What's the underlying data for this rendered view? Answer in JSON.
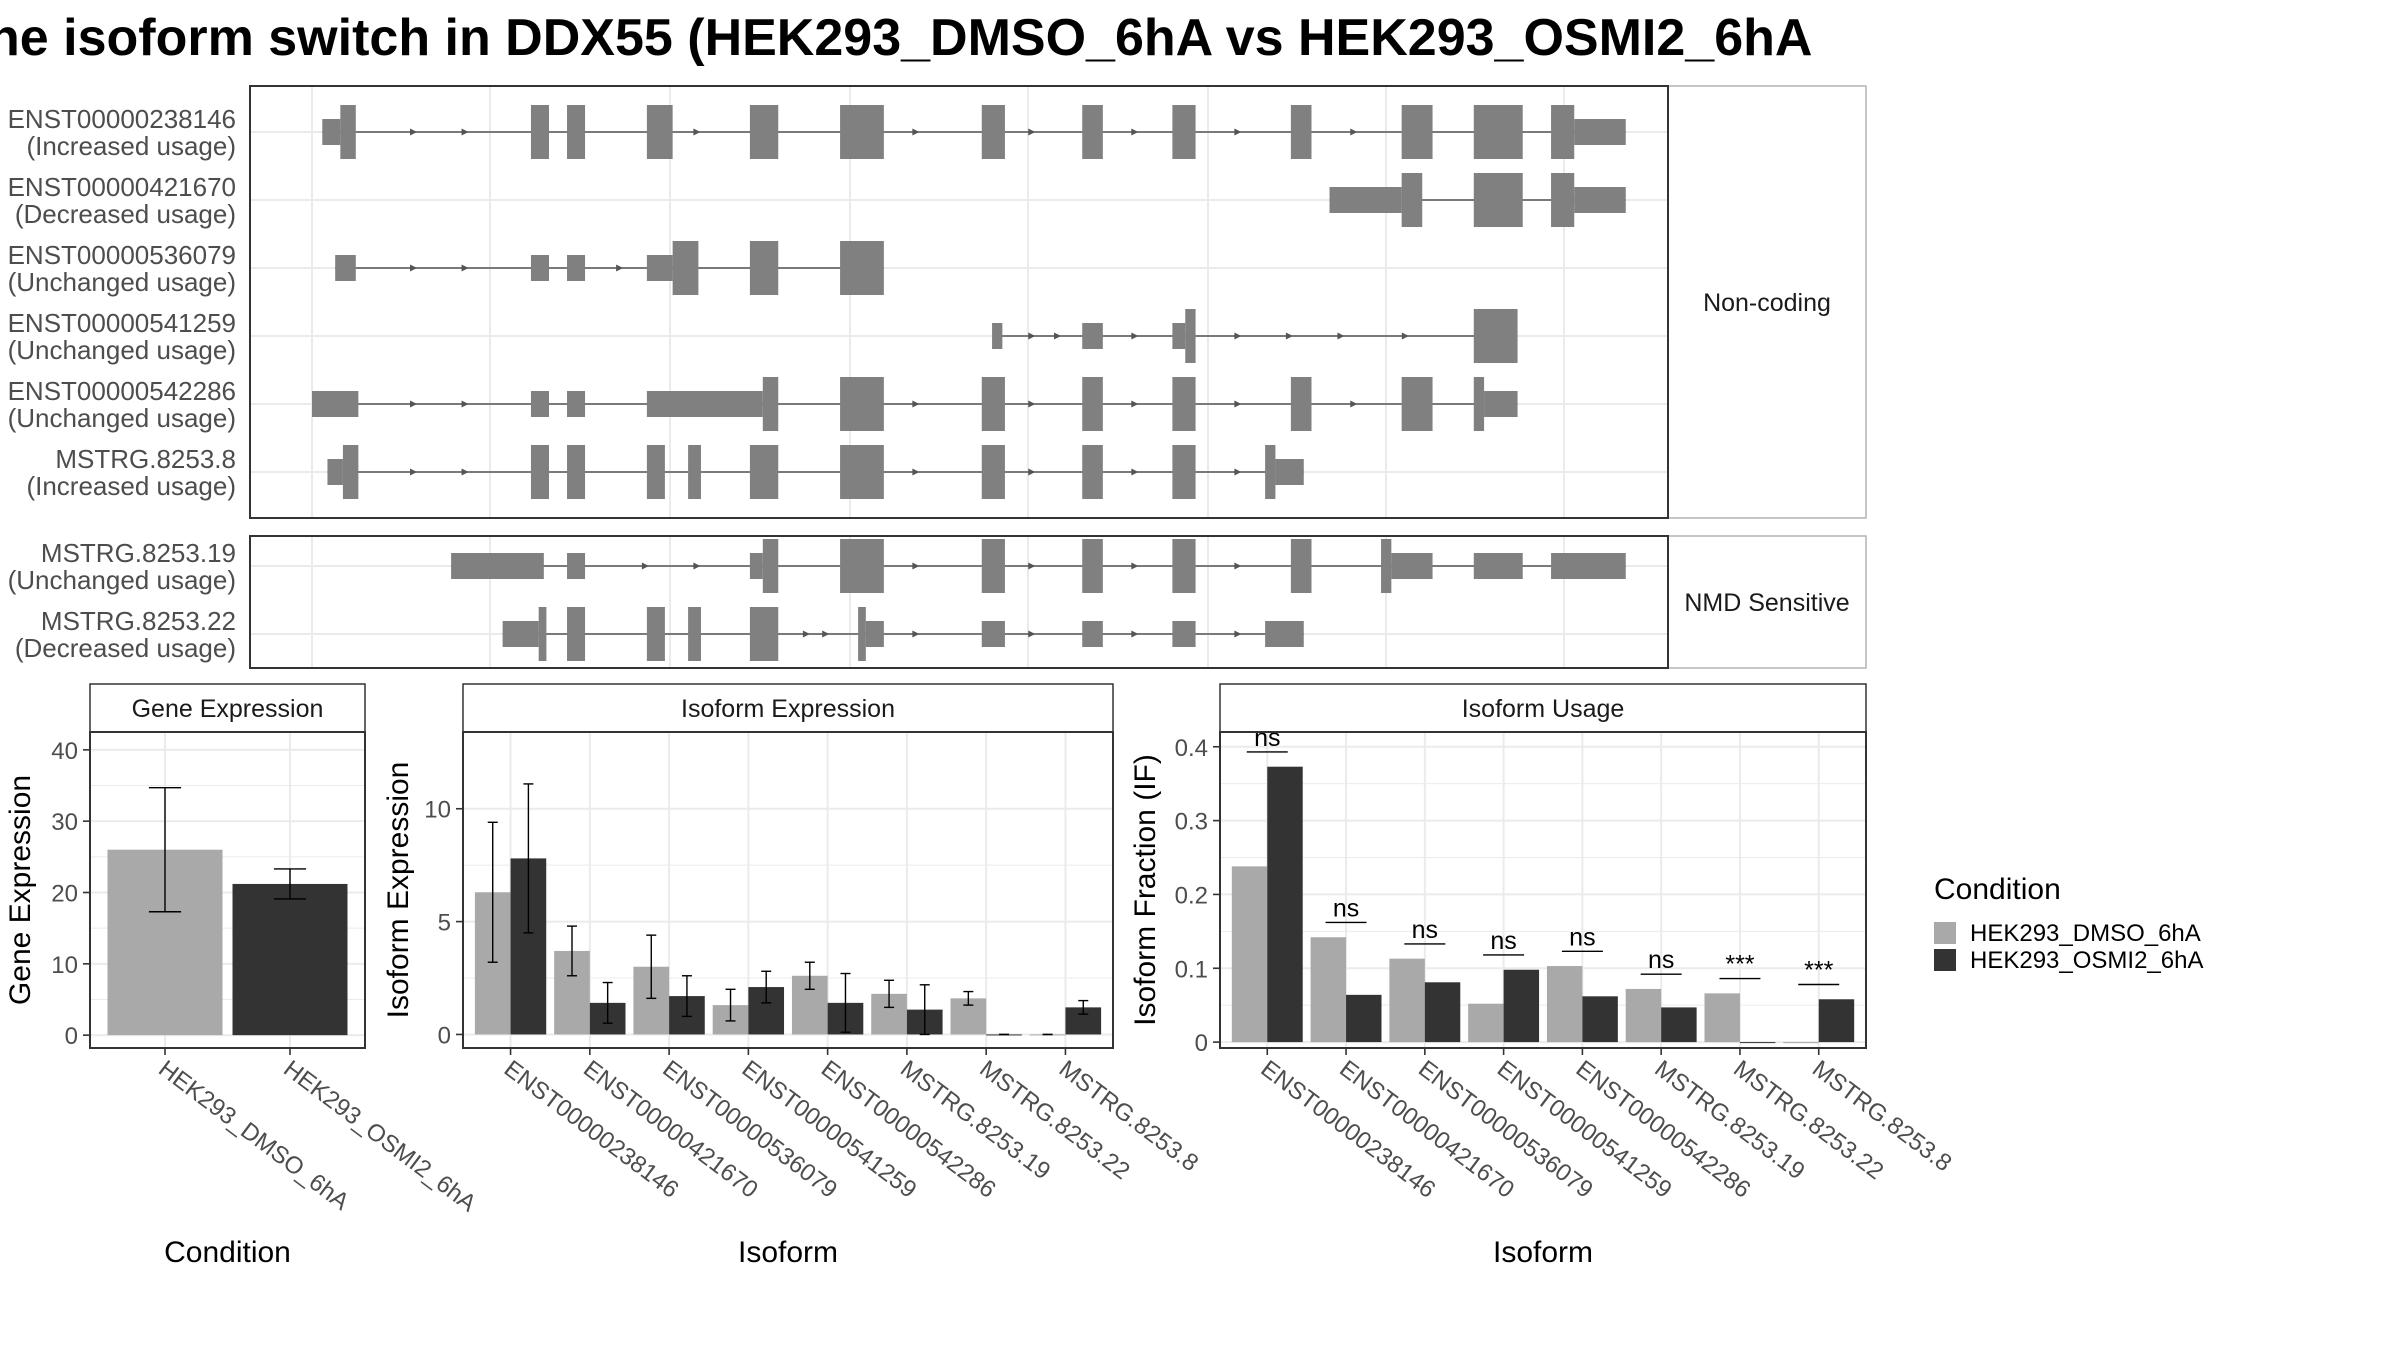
{
  "title": "he isoform switch in DDX55 (HEK293_DMSO_6hA vs HEK293_OSMI2_6hA",
  "colors": {
    "exon": "#808080",
    "intron": "#555555",
    "condition1": "#a9a9a9",
    "condition2": "#333333",
    "grid": "#ebebeb",
    "strip": "#ffffff",
    "panel_border": "#333333",
    "strip_border": "#b3b3b3"
  },
  "legend": {
    "title": "Condition",
    "items": [
      "HEK293_DMSO_6hA",
      "HEK293_OSMI2_6hA"
    ]
  },
  "chart_data": [
    {
      "type": "gene-structure",
      "x_range": [
        0,
        1000
      ],
      "groups": [
        {
          "label": "Non-coding",
          "isoforms": [
            {
              "name": "ENST00000238146",
              "usage": "(Increased usage)",
              "exons": [
                [
                  8,
                  22,
                  "n"
                ],
                [
                  22,
                  34,
                  "c"
                ],
                [
                  170,
                  184,
                  "c"
                ],
                [
                  198,
                  212,
                  "c"
                ],
                [
                  260,
                  280,
                  "c"
                ],
                [
                  340,
                  362,
                  "c"
                ],
                [
                  410,
                  444,
                  "c"
                ],
                [
                  520,
                  538,
                  "c"
                ],
                [
                  598,
                  614,
                  "c"
                ],
                [
                  668,
                  686,
                  "c"
                ],
                [
                  760,
                  776,
                  "c"
                ],
                [
                  846,
                  870,
                  "c"
                ],
                [
                  902,
                  940,
                  "c"
                ],
                [
                  962,
                  980,
                  "c"
                ],
                [
                  980,
                  1020,
                  "n"
                ]
              ],
              "arrows": [
                80,
                120,
                300,
                470,
                560,
                640,
                720,
                810
              ]
            },
            {
              "name": "ENST00000421670",
              "usage": "(Decreased usage)",
              "exons": [
                [
                  790,
                  846,
                  "n"
                ],
                [
                  846,
                  862,
                  "c"
                ],
                [
                  902,
                  940,
                  "c"
                ],
                [
                  962,
                  980,
                  "c"
                ],
                [
                  980,
                  1020,
                  "n"
                ]
              ],
              "arrows": []
            },
            {
              "name": "ENST00000536079",
              "usage": "(Unchanged usage)",
              "exons": [
                [
                  18,
                  34,
                  "n"
                ],
                [
                  170,
                  184,
                  "n"
                ],
                [
                  198,
                  212,
                  "n"
                ],
                [
                  260,
                  280,
                  "n"
                ],
                [
                  280,
                  300,
                  "c"
                ],
                [
                  340,
                  362,
                  "c"
                ],
                [
                  410,
                  444,
                  "c"
                ]
              ],
              "arrows": [
                80,
                120,
                240
              ]
            },
            {
              "name": "ENST00000541259",
              "usage": "(Unchanged usage)",
              "exons": [
                [
                  528,
                  536,
                  "n"
                ],
                [
                  598,
                  614,
                  "n"
                ],
                [
                  668,
                  678,
                  "n"
                ],
                [
                  678,
                  686,
                  "c"
                ],
                [
                  902,
                  936,
                  "c"
                ]
              ],
              "arrows": [
                560,
                580,
                640,
                720,
                760,
                800,
                850
              ]
            },
            {
              "name": "ENST00000542286",
              "usage": "(Unchanged usage)",
              "exons": [
                [
                  0,
                  36,
                  "n"
                ],
                [
                  170,
                  184,
                  "n"
                ],
                [
                  198,
                  212,
                  "n"
                ],
                [
                  260,
                  350,
                  "n"
                ],
                [
                  350,
                  362,
                  "c"
                ],
                [
                  410,
                  444,
                  "c"
                ],
                [
                  520,
                  538,
                  "c"
                ],
                [
                  598,
                  614,
                  "c"
                ],
                [
                  668,
                  686,
                  "c"
                ],
                [
                  760,
                  776,
                  "c"
                ],
                [
                  846,
                  870,
                  "c"
                ],
                [
                  902,
                  910,
                  "c"
                ],
                [
                  910,
                  936,
                  "n"
                ]
              ],
              "arrows": [
                80,
                120,
                300,
                470,
                560,
                640,
                720,
                810
              ]
            },
            {
              "name": "MSTRG.8253.8",
              "usage": "(Increased usage)",
              "exons": [
                [
                  12,
                  24,
                  "n"
                ],
                [
                  24,
                  36,
                  "c"
                ],
                [
                  170,
                  184,
                  "c"
                ],
                [
                  198,
                  212,
                  "c"
                ],
                [
                  260,
                  274,
                  "c"
                ],
                [
                  292,
                  302,
                  "c"
                ],
                [
                  340,
                  362,
                  "c"
                ],
                [
                  410,
                  444,
                  "c"
                ],
                [
                  520,
                  538,
                  "c"
                ],
                [
                  598,
                  614,
                  "c"
                ],
                [
                  668,
                  686,
                  "c"
                ],
                [
                  740,
                  748,
                  "c"
                ],
                [
                  748,
                  770,
                  "n"
                ]
              ],
              "arrows": [
                80,
                120,
                470,
                560,
                640,
                720
              ]
            }
          ]
        },
        {
          "label": "NMD Sensitive",
          "isoforms": [
            {
              "name": "MSTRG.8253.19",
              "usage": "(Unchanged usage)",
              "exons": [
                [
                  108,
                  180,
                  "n"
                ],
                [
                  198,
                  212,
                  "n"
                ],
                [
                  340,
                  350,
                  "n"
                ],
                [
                  350,
                  362,
                  "c"
                ],
                [
                  410,
                  444,
                  "c"
                ],
                [
                  520,
                  538,
                  "c"
                ],
                [
                  598,
                  614,
                  "c"
                ],
                [
                  668,
                  686,
                  "c"
                ],
                [
                  760,
                  776,
                  "c"
                ],
                [
                  830,
                  838,
                  "c"
                ],
                [
                  838,
                  870,
                  "n"
                ],
                [
                  902,
                  940,
                  "n"
                ],
                [
                  962,
                  1020,
                  "n"
                ]
              ],
              "arrows": [
                260,
                300,
                470,
                560,
                640,
                720
              ]
            },
            {
              "name": "MSTRG.8253.22",
              "usage": "(Decreased usage)",
              "exons": [
                [
                  148,
                  176,
                  "n"
                ],
                [
                  176,
                  182,
                  "c"
                ],
                [
                  198,
                  212,
                  "c"
                ],
                [
                  260,
                  274,
                  "c"
                ],
                [
                  292,
                  302,
                  "c"
                ],
                [
                  340,
                  362,
                  "c"
                ],
                [
                  424,
                  430,
                  "c"
                ],
                [
                  430,
                  444,
                  "n"
                ],
                [
                  520,
                  538,
                  "n"
                ],
                [
                  598,
                  614,
                  "n"
                ],
                [
                  668,
                  686,
                  "n"
                ],
                [
                  740,
                  770,
                  "n"
                ]
              ],
              "arrows": [
                385,
                400,
                470,
                560,
                640,
                720
              ]
            }
          ]
        }
      ]
    },
    {
      "type": "bar",
      "title": "Gene Expression",
      "xlabel": "Condition",
      "ylabel": "Gene Expression",
      "categories": [
        "HEK293_DMSO_6hA",
        "HEK293_OSMI2_6hA"
      ],
      "values": [
        26,
        21.2
      ],
      "errors": [
        [
          17.3,
          34.7
        ],
        [
          19.1,
          23.3
        ]
      ],
      "yticks": [
        0,
        10,
        20,
        30,
        40
      ],
      "ylim": [
        -1.8,
        42.5
      ]
    },
    {
      "type": "bar",
      "title": "Isoform Expression",
      "xlabel": "Isoform",
      "ylabel": "Isoform Expression",
      "categories": [
        "ENST00000238146",
        "ENST00000421670",
        "ENST00000536079",
        "ENST00000541259",
        "ENST00000542286",
        "MSTRG.8253.19",
        "MSTRG.8253.22",
        "MSTRG.8253.8"
      ],
      "series": [
        {
          "name": "HEK293_DMSO_6hA",
          "values": [
            6.3,
            3.7,
            3.0,
            1.3,
            2.6,
            1.8,
            1.6,
            0.0
          ],
          "errors": [
            [
              3.2,
              9.4
            ],
            [
              2.6,
              4.8
            ],
            [
              1.6,
              4.4
            ],
            [
              0.6,
              2.0
            ],
            [
              2.0,
              3.2
            ],
            [
              1.2,
              2.4
            ],
            [
              1.3,
              1.9
            ],
            [
              0.0,
              0.0
            ]
          ]
        },
        {
          "name": "HEK293_OSMI2_6hA",
          "values": [
            7.8,
            1.4,
            1.7,
            2.1,
            1.4,
            1.1,
            0.0,
            1.2
          ],
          "errors": [
            [
              4.5,
              11.1
            ],
            [
              0.5,
              2.3
            ],
            [
              0.8,
              2.6
            ],
            [
              1.4,
              2.8
            ],
            [
              0.1,
              2.7
            ],
            [
              0.0,
              2.2
            ],
            [
              0.0,
              0.0
            ],
            [
              0.9,
              1.5
            ]
          ]
        }
      ],
      "yticks": [
        0,
        5,
        10
      ],
      "ylim": [
        -0.6,
        13.4
      ]
    },
    {
      "type": "bar",
      "title": "Isoform Usage",
      "xlabel": "Isoform",
      "ylabel": "Isoform Fraction (IF)",
      "categories": [
        "ENST00000238146",
        "ENST00000421670",
        "ENST00000536079",
        "ENST00000541259",
        "ENST00000542286",
        "MSTRG.8253.19",
        "MSTRG.8253.22",
        "MSTRG.8253.8"
      ],
      "series": [
        {
          "name": "HEK293_DMSO_6hA",
          "values": [
            0.238,
            0.142,
            0.113,
            0.052,
            0.103,
            0.072,
            0.066,
            0.0
          ]
        },
        {
          "name": "HEK293_OSMI2_6hA",
          "values": [
            0.373,
            0.064,
            0.081,
            0.098,
            0.062,
            0.047,
            0.0,
            0.058
          ]
        }
      ],
      "significance": [
        {
          "label": "ns",
          "y": 0.393
        },
        {
          "label": "ns",
          "y": 0.162
        },
        {
          "label": "ns",
          "y": 0.133
        },
        {
          "label": "ns",
          "y": 0.118
        },
        {
          "label": "ns",
          "y": 0.123
        },
        {
          "label": "ns",
          "y": 0.092
        },
        {
          "label": "***",
          "y": 0.086
        },
        {
          "label": "***",
          "y": 0.078
        }
      ],
      "yticks": [
        0.0,
        0.1,
        0.2,
        0.3,
        0.4
      ],
      "ylim": [
        -0.008,
        0.42
      ]
    }
  ]
}
